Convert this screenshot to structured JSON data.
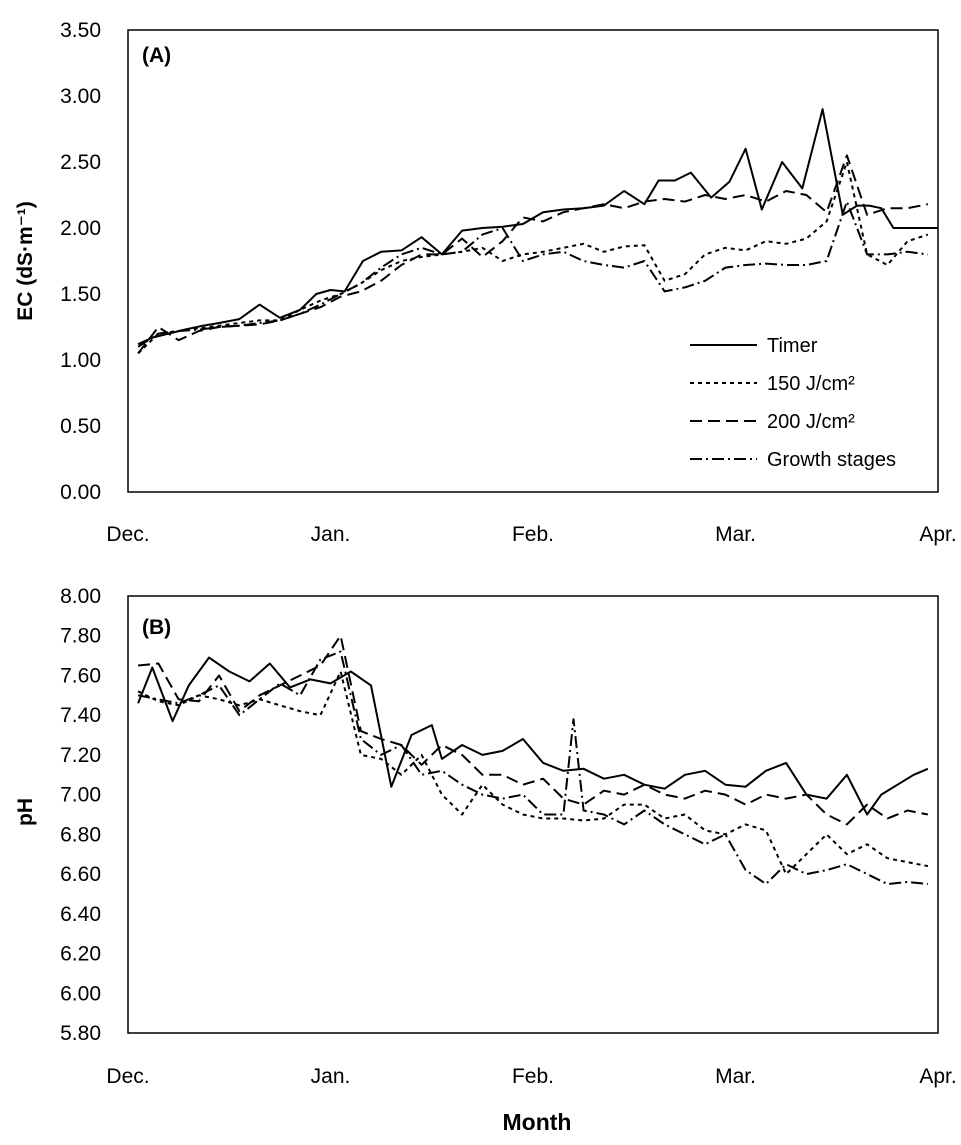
{
  "chart_data": [
    {
      "type": "line",
      "panel_label": "(A)",
      "xlabel": "",
      "ylabel": "EC (dS·m⁻¹)",
      "ylim": [
        0,
        3.5
      ],
      "ytick_labels": [
        "0.00",
        "0.50",
        "1.00",
        "1.50",
        "2.00",
        "2.50",
        "3.00",
        "3.50"
      ],
      "x_tick_labels": [
        "Dec.",
        "Jan.",
        "Feb.",
        "Mar.",
        "Apr."
      ],
      "x_tick_positions": [
        0,
        1,
        2,
        3,
        4
      ],
      "xlim": [
        0,
        4
      ],
      "grid": false,
      "legend_placement": "bottom-right",
      "series": [
        {
          "name": "Timer",
          "dash": "solid",
          "x": [
            0.05,
            0.12,
            0.2,
            0.28,
            0.37,
            0.45,
            0.55,
            0.65,
            0.75,
            0.85,
            0.93,
            1.0,
            1.07,
            1.16,
            1.25,
            1.35,
            1.45,
            1.55,
            1.65,
            1.75,
            1.85,
            1.95,
            2.05,
            2.15,
            2.25,
            2.35,
            2.45,
            2.55,
            2.62,
            2.7,
            2.78,
            2.88,
            2.97,
            3.05,
            3.13,
            3.23,
            3.33,
            3.43,
            3.53,
            3.6,
            3.66,
            3.72,
            3.78,
            3.85,
            3.88,
            3.94,
            4.0
          ],
          "values": [
            1.12,
            1.17,
            1.2,
            1.23,
            1.26,
            1.28,
            1.31,
            1.42,
            1.32,
            1.38,
            1.5,
            1.53,
            1.52,
            1.75,
            1.82,
            1.83,
            1.93,
            1.8,
            1.98,
            2.0,
            2.01,
            2.03,
            2.12,
            2.14,
            2.15,
            2.17,
            2.28,
            2.18,
            2.36,
            2.36,
            2.42,
            2.23,
            2.35,
            2.6,
            2.14,
            2.5,
            2.3,
            2.9,
            2.1,
            2.17,
            2.17,
            2.15,
            2.0,
            2.0,
            2.0,
            2.0,
            2.0
          ]
        },
        {
          "name": "150 J/cm²",
          "dash": "4,4",
          "x": [
            0.05,
            0.15,
            0.25,
            0.35,
            0.45,
            0.55,
            0.65,
            0.75,
            0.85,
            0.95,
            1.05,
            1.15,
            1.25,
            1.35,
            1.45,
            1.55,
            1.65,
            1.75,
            1.85,
            1.95,
            2.05,
            2.15,
            2.25,
            2.35,
            2.45,
            2.55,
            2.65,
            2.75,
            2.85,
            2.95,
            3.05,
            3.15,
            3.25,
            3.35,
            3.45,
            3.55,
            3.65,
            3.75,
            3.85,
            3.95
          ],
          "values": [
            1.05,
            1.2,
            1.22,
            1.24,
            1.26,
            1.28,
            1.3,
            1.3,
            1.38,
            1.45,
            1.5,
            1.58,
            1.68,
            1.75,
            1.78,
            1.8,
            1.82,
            1.85,
            1.75,
            1.8,
            1.82,
            1.85,
            1.88,
            1.82,
            1.86,
            1.87,
            1.6,
            1.65,
            1.8,
            1.85,
            1.83,
            1.9,
            1.88,
            1.92,
            2.05,
            2.5,
            1.8,
            1.72,
            1.9,
            1.95
          ]
        },
        {
          "name": "200 J/cm²",
          "dash": "12,6",
          "x": [
            0.05,
            0.15,
            0.25,
            0.35,
            0.45,
            0.55,
            0.65,
            0.75,
            0.85,
            0.95,
            1.05,
            1.15,
            1.25,
            1.35,
            1.45,
            1.55,
            1.65,
            1.75,
            1.85,
            1.95,
            2.05,
            2.15,
            2.25,
            2.35,
            2.45,
            2.55,
            2.65,
            2.75,
            2.85,
            2.95,
            3.05,
            3.15,
            3.25,
            3.35,
            3.45,
            3.55,
            3.65,
            3.75,
            3.85,
            3.95
          ],
          "values": [
            1.05,
            1.25,
            1.15,
            1.22,
            1.25,
            1.26,
            1.27,
            1.3,
            1.35,
            1.4,
            1.48,
            1.52,
            1.6,
            1.72,
            1.8,
            1.8,
            1.92,
            1.78,
            1.9,
            2.08,
            2.05,
            2.12,
            2.15,
            2.18,
            2.15,
            2.2,
            2.22,
            2.2,
            2.25,
            2.22,
            2.25,
            2.2,
            2.28,
            2.25,
            2.12,
            2.55,
            2.1,
            2.15,
            2.15,
            2.18
          ]
        },
        {
          "name": "Growth stages",
          "dash": "12,4,2,4",
          "x": [
            0.05,
            0.15,
            0.25,
            0.35,
            0.45,
            0.55,
            0.65,
            0.75,
            0.85,
            0.95,
            1.05,
            1.15,
            1.25,
            1.35,
            1.45,
            1.55,
            1.65,
            1.75,
            1.85,
            1.95,
            2.05,
            2.15,
            2.25,
            2.35,
            2.45,
            2.55,
            2.65,
            2.75,
            2.85,
            2.95,
            3.05,
            3.15,
            3.25,
            3.35,
            3.45,
            3.55,
            3.65,
            3.75,
            3.85,
            3.95
          ],
          "values": [
            1.1,
            1.2,
            1.22,
            1.23,
            1.25,
            1.26,
            1.28,
            1.3,
            1.35,
            1.42,
            1.5,
            1.58,
            1.7,
            1.8,
            1.85,
            1.8,
            1.82,
            1.95,
            2.0,
            1.75,
            1.8,
            1.82,
            1.75,
            1.72,
            1.7,
            1.75,
            1.52,
            1.55,
            1.6,
            1.7,
            1.72,
            1.73,
            1.72,
            1.72,
            1.75,
            2.2,
            1.8,
            1.8,
            1.82,
            1.8
          ]
        }
      ]
    },
    {
      "type": "line",
      "panel_label": "(B)",
      "xlabel": "Month",
      "ylabel": "pH",
      "ylim": [
        5.8,
        8.0
      ],
      "ytick_labels": [
        "5.80",
        "6.00",
        "6.20",
        "6.40",
        "6.60",
        "6.80",
        "7.00",
        "7.20",
        "7.40",
        "7.60",
        "7.80",
        "8.00"
      ],
      "x_tick_labels": [
        "Dec.",
        "Jan.",
        "Feb.",
        "Mar.",
        "Apr."
      ],
      "x_tick_positions": [
        0,
        1,
        2,
        3,
        4
      ],
      "xlim": [
        0,
        4
      ],
      "grid": false,
      "series": [
        {
          "name": "Timer",
          "dash": "solid",
          "x": [
            0.05,
            0.12,
            0.22,
            0.3,
            0.4,
            0.5,
            0.6,
            0.7,
            0.8,
            0.9,
            1.0,
            1.1,
            1.2,
            1.3,
            1.4,
            1.5,
            1.55,
            1.65,
            1.75,
            1.85,
            1.95,
            2.05,
            2.15,
            2.25,
            2.35,
            2.45,
            2.55,
            2.65,
            2.75,
            2.85,
            2.95,
            3.05,
            3.15,
            3.25,
            3.35,
            3.45,
            3.55,
            3.65,
            3.72,
            3.8,
            3.88,
            3.95
          ],
          "values": [
            7.46,
            7.64,
            7.37,
            7.55,
            7.69,
            7.62,
            7.57,
            7.66,
            7.54,
            7.58,
            7.56,
            7.62,
            7.55,
            7.04,
            7.3,
            7.35,
            7.18,
            7.25,
            7.2,
            7.22,
            7.28,
            7.16,
            7.12,
            7.13,
            7.08,
            7.1,
            7.05,
            7.03,
            7.1,
            7.12,
            7.05,
            7.04,
            7.12,
            7.16,
            7.0,
            6.98,
            7.1,
            6.9,
            7.0,
            7.05,
            7.1,
            7.13
          ]
        },
        {
          "name": "150 J/cm²",
          "dash": "4,4",
          "x": [
            0.05,
            0.15,
            0.25,
            0.35,
            0.45,
            0.55,
            0.65,
            0.75,
            0.85,
            0.95,
            1.05,
            1.15,
            1.25,
            1.35,
            1.45,
            1.55,
            1.65,
            1.75,
            1.85,
            1.95,
            2.05,
            2.15,
            2.25,
            2.35,
            2.45,
            2.55,
            2.65,
            2.75,
            2.85,
            2.95,
            3.05,
            3.15,
            3.25,
            3.35,
            3.45,
            3.55,
            3.65,
            3.75,
            3.85,
            3.95
          ],
          "values": [
            7.52,
            7.47,
            7.45,
            7.5,
            7.48,
            7.45,
            7.48,
            7.45,
            7.42,
            7.4,
            7.62,
            7.2,
            7.18,
            7.1,
            7.2,
            7.0,
            6.9,
            7.05,
            6.95,
            6.9,
            6.88,
            6.88,
            6.87,
            6.88,
            6.95,
            6.95,
            6.88,
            6.9,
            6.82,
            6.8,
            6.85,
            6.82,
            6.6,
            6.7,
            6.8,
            6.7,
            6.75,
            6.68,
            6.66,
            6.64
          ]
        },
        {
          "name": "200 J/cm²",
          "dash": "12,6",
          "x": [
            0.05,
            0.15,
            0.25,
            0.35,
            0.45,
            0.55,
            0.65,
            0.75,
            0.85,
            0.95,
            1.05,
            1.15,
            1.25,
            1.35,
            1.45,
            1.55,
            1.65,
            1.75,
            1.85,
            1.95,
            2.05,
            2.15,
            2.25,
            2.35,
            2.45,
            2.55,
            2.65,
            2.75,
            2.85,
            2.95,
            3.05,
            3.15,
            3.25,
            3.35,
            3.45,
            3.55,
            3.65,
            3.75,
            3.85,
            3.95
          ],
          "values": [
            7.65,
            7.66,
            7.48,
            7.47,
            7.6,
            7.42,
            7.5,
            7.55,
            7.6,
            7.65,
            7.8,
            7.32,
            7.28,
            7.25,
            7.15,
            7.25,
            7.2,
            7.1,
            7.1,
            7.05,
            7.08,
            6.98,
            6.95,
            7.02,
            7.0,
            7.05,
            7.0,
            6.98,
            7.02,
            7.0,
            6.95,
            7.0,
            6.98,
            7.0,
            6.9,
            6.85,
            6.95,
            6.88,
            6.92,
            6.9
          ]
        },
        {
          "name": "Growth stages",
          "dash": "12,4,2,4",
          "x": [
            0.05,
            0.15,
            0.25,
            0.35,
            0.45,
            0.55,
            0.65,
            0.75,
            0.85,
            0.95,
            1.05,
            1.15,
            1.25,
            1.35,
            1.45,
            1.55,
            1.65,
            1.75,
            1.85,
            1.95,
            2.05,
            2.15,
            2.2,
            2.25,
            2.35,
            2.45,
            2.55,
            2.65,
            2.75,
            2.85,
            2.95,
            3.05,
            3.15,
            3.25,
            3.35,
            3.45,
            3.55,
            3.65,
            3.75,
            3.85,
            3.95
          ],
          "values": [
            7.5,
            7.48,
            7.46,
            7.5,
            7.55,
            7.4,
            7.48,
            7.56,
            7.5,
            7.68,
            7.72,
            7.28,
            7.2,
            7.25,
            7.1,
            7.12,
            7.05,
            7.0,
            6.98,
            7.0,
            6.9,
            6.9,
            7.38,
            6.92,
            6.9,
            6.85,
            6.92,
            6.85,
            6.8,
            6.75,
            6.8,
            6.62,
            6.55,
            6.65,
            6.6,
            6.62,
            6.65,
            6.6,
            6.55,
            6.56,
            6.55
          ]
        }
      ]
    }
  ]
}
